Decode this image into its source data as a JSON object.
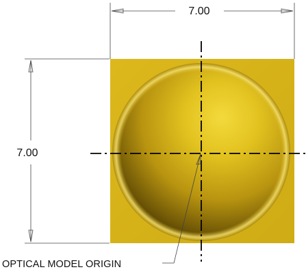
{
  "dimensions": {
    "width_label": "7.00",
    "height_label": "7.00"
  },
  "callout": {
    "origin_label": "OPTICAL MODEL ORIGIN"
  },
  "colors": {
    "plate": "#d8b41a",
    "plate_edge": "#b8950c",
    "sphere_highlight": "#f2d83a",
    "sphere_mid": "#c9a40f",
    "sphere_shadow": "#3a2c04",
    "line": "#222222",
    "centerline": "#000000"
  }
}
